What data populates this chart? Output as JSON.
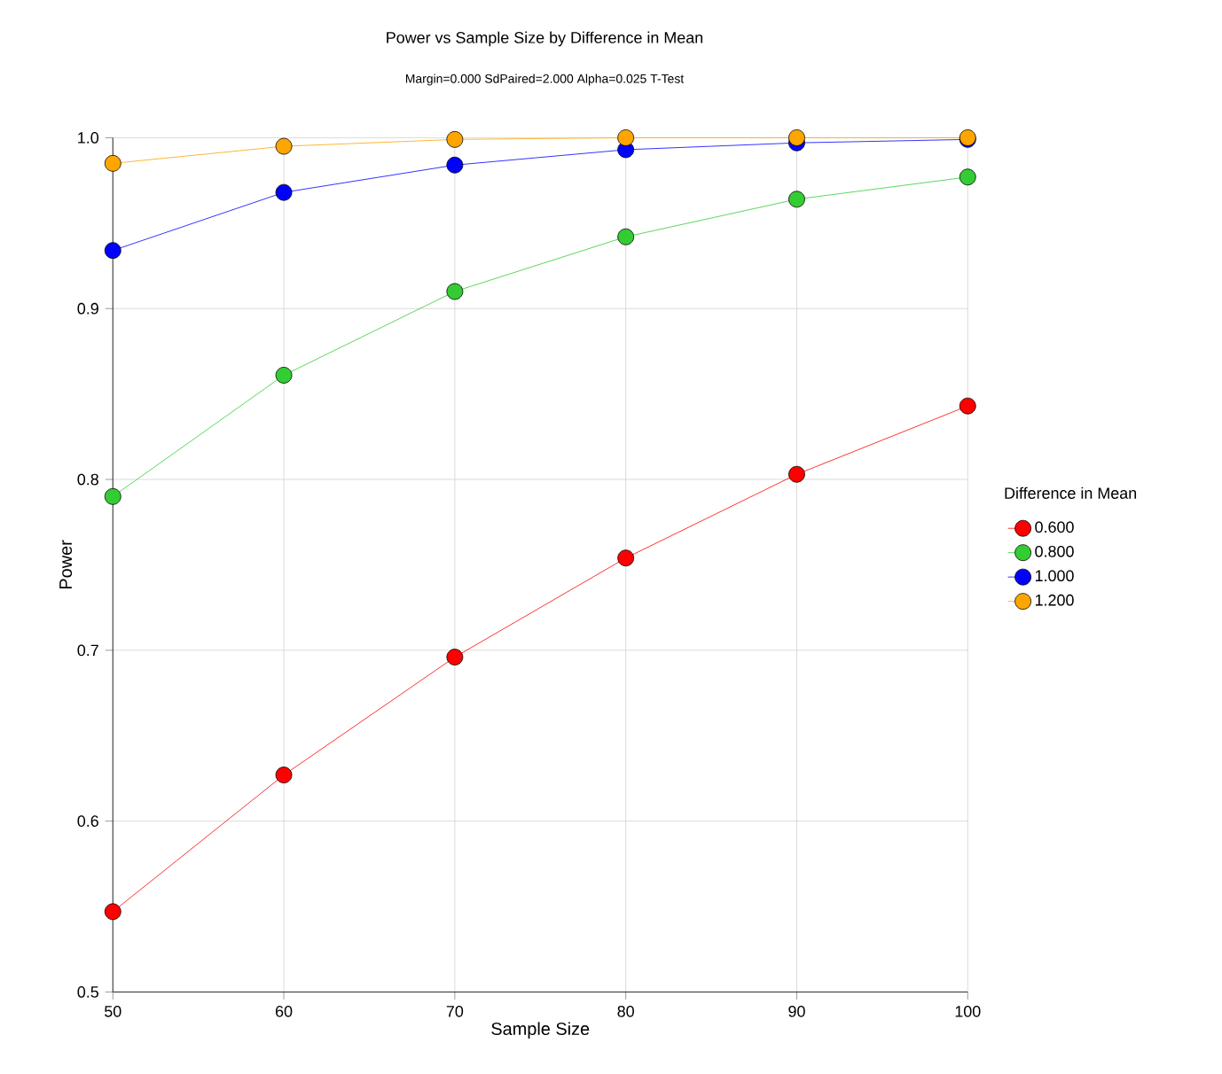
{
  "chart_data": {
    "type": "line",
    "title": "Power vs Sample Size by Difference in Mean",
    "subtitle": "Margin=0.000 SdPaired=2.000 Alpha=0.025 T-Test",
    "xlabel": "Sample Size",
    "ylabel": "Power",
    "legend_title": "Difference in Mean",
    "x": [
      50,
      60,
      70,
      80,
      90,
      100
    ],
    "series": [
      {
        "name": "0.600",
        "color": "#ff0000",
        "values": [
          0.547,
          0.627,
          0.696,
          0.754,
          0.803,
          0.843
        ]
      },
      {
        "name": "0.800",
        "color": "#33cc33",
        "values": [
          0.79,
          0.861,
          0.91,
          0.942,
          0.964,
          0.977
        ]
      },
      {
        "name": "1.000",
        "color": "#0000ff",
        "values": [
          0.934,
          0.968,
          0.984,
          0.993,
          0.997,
          0.999
        ]
      },
      {
        "name": "1.200",
        "color": "#ffa500",
        "values": [
          0.985,
          0.995,
          0.999,
          1.0,
          1.0,
          1.0
        ]
      }
    ],
    "xlim": [
      50,
      100
    ],
    "ylim": [
      0.5,
      1.0
    ],
    "xticks": [
      50,
      60,
      70,
      80,
      90,
      100
    ],
    "yticks": [
      0.5,
      0.6,
      0.7,
      0.8,
      0.9,
      {
        "value": 1.0,
        "label": "1.0"
      }
    ],
    "grid": true,
    "legend": "right",
    "marker": "circle",
    "line_style": "solid"
  }
}
